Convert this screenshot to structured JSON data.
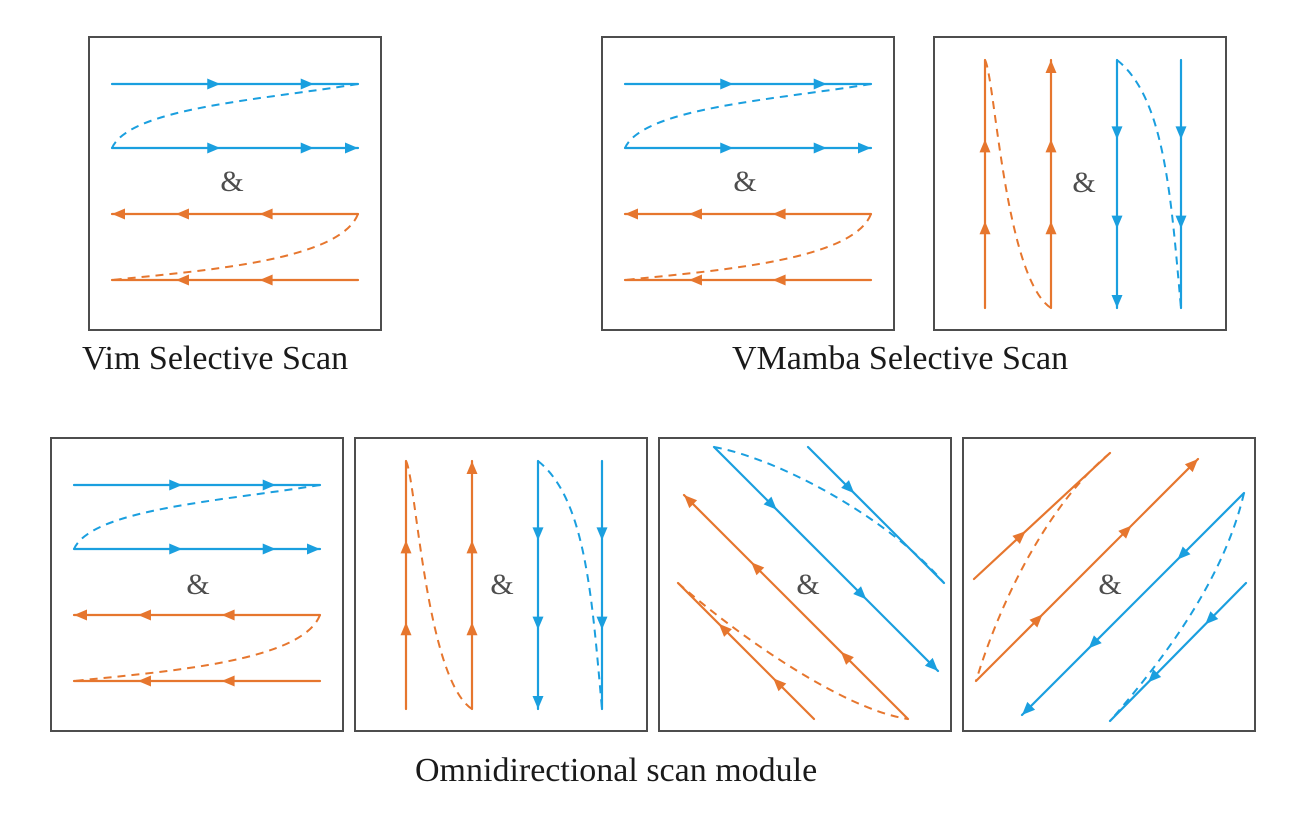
{
  "colors": {
    "blue": "#1a9fdf",
    "orange": "#e6762e",
    "border": "#4d4d4d"
  },
  "groups": [
    {
      "caption": "Vim Selective Scan",
      "scans": [
        "horizontal"
      ]
    },
    {
      "caption": "VMamba Selective Scan",
      "scans": [
        "horizontal",
        "vertical"
      ]
    },
    {
      "caption": "Omnidirectional scan module",
      "scans": [
        "horizontal",
        "vertical",
        "diagonal",
        "anti-diagonal"
      ]
    }
  ],
  "separator": "&"
}
